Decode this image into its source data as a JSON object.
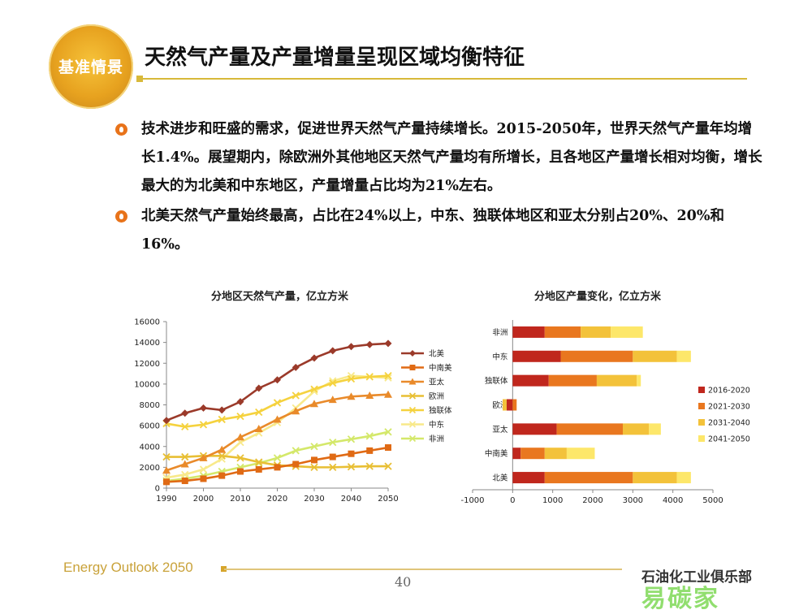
{
  "header": {
    "logo_text": "基准情景",
    "title": "天然气产量及产量增量呈现区域均衡特征"
  },
  "bullets": [
    "技术进步和旺盛的需求，促进世界天然气产量持续增长。2015-2050年，世界天然气产量年均增长1.4%。展望期内，除欧洲外其他地区天然气产量均有所增长，且各地区产量增长相对均衡，增长最大的为北美和中东地区，产量增量占比均为21%左右。",
    "北美天然气产量始终最高，占比在24%以上，中东、独联体地区和亚太分别占20%、20%和16%。"
  ],
  "footer": {
    "brand": "Energy Outlook 2050",
    "page": "40",
    "watermark_top": "石油化工业俱乐部",
    "watermark_bottom": "易碳家"
  },
  "chart_data": [
    {
      "type": "line",
      "title": "分地区天然气产量，亿立方米",
      "xlabel": "",
      "ylabel": "",
      "x": [
        1990,
        1995,
        2000,
        2005,
        2010,
        2015,
        2020,
        2025,
        2030,
        2035,
        2040,
        2045,
        2050
      ],
      "xticks": [
        1990,
        2000,
        2010,
        2020,
        2030,
        2040,
        2050
      ],
      "ylim": [
        0,
        16000
      ],
      "yticks": [
        0,
        2000,
        4000,
        6000,
        8000,
        10000,
        12000,
        14000,
        16000
      ],
      "grid": false,
      "legend": "right",
      "series": [
        {
          "name": "北美",
          "color": "#9b3a2a",
          "marker": "diamond",
          "values": [
            6500,
            7200,
            7700,
            7500,
            8300,
            9600,
            10400,
            11600,
            12500,
            13200,
            13600,
            13800,
            13900
          ]
        },
        {
          "name": "中南美",
          "color": "#e06a14",
          "marker": "square",
          "values": [
            600,
            700,
            900,
            1200,
            1600,
            1800,
            2000,
            2300,
            2700,
            3000,
            3300,
            3600,
            3900
          ]
        },
        {
          "name": "亚太",
          "color": "#e98a2a",
          "marker": "triangle",
          "values": [
            1700,
            2300,
            2900,
            3700,
            4900,
            5700,
            6600,
            7400,
            8100,
            8500,
            8800,
            8900,
            9000
          ]
        },
        {
          "name": "欧洲",
          "color": "#e8bf34",
          "marker": "x",
          "values": [
            3000,
            3000,
            3100,
            3100,
            2900,
            2500,
            2200,
            2100,
            2000,
            2000,
            2050,
            2100,
            2100
          ]
        },
        {
          "name": "独联体",
          "color": "#f5d23e",
          "marker": "x",
          "values": [
            6200,
            5900,
            6100,
            6600,
            6900,
            7300,
            8200,
            8900,
            9500,
            10100,
            10500,
            10700,
            10800
          ]
        },
        {
          "name": "中东",
          "color": "#f8e98a",
          "marker": "x",
          "values": [
            1000,
            1300,
            1800,
            2800,
            4400,
            5300,
            6300,
            7700,
            9300,
            10300,
            10800,
            10700,
            10600
          ]
        },
        {
          "name": "非洲",
          "color": "#d4e86a",
          "marker": "x",
          "values": [
            700,
            900,
            1200,
            1600,
            2000,
            2400,
            2900,
            3600,
            4000,
            4400,
            4700,
            5000,
            5400
          ]
        }
      ]
    },
    {
      "type": "bar",
      "orientation": "horizontal",
      "stacked": true,
      "title": "分地区产量变化，亿立方米",
      "categories": [
        "非洲",
        "中东",
        "独联体",
        "欧洲",
        "亚太",
        "中南美",
        "北美"
      ],
      "xlim": [
        -1000,
        5000
      ],
      "xticks": [
        -1000,
        0,
        1000,
        2000,
        3000,
        4000,
        5000
      ],
      "legend": "right",
      "series": [
        {
          "name": "2016-2020",
          "color": "#c0271d",
          "values": [
            800,
            1200,
            900,
            -150,
            1100,
            200,
            800
          ]
        },
        {
          "name": "2021-2030",
          "color": "#e9771f",
          "values": [
            900,
            1800,
            1200,
            100,
            1650,
            600,
            2200
          ]
        },
        {
          "name": "2031-2040",
          "color": "#f3c23a",
          "values": [
            750,
            1100,
            1000,
            -100,
            650,
            550,
            1100
          ]
        },
        {
          "name": "2041-2050",
          "color": "#fde76a",
          "values": [
            800,
            350,
            100,
            0,
            300,
            700,
            350
          ]
        }
      ]
    }
  ]
}
